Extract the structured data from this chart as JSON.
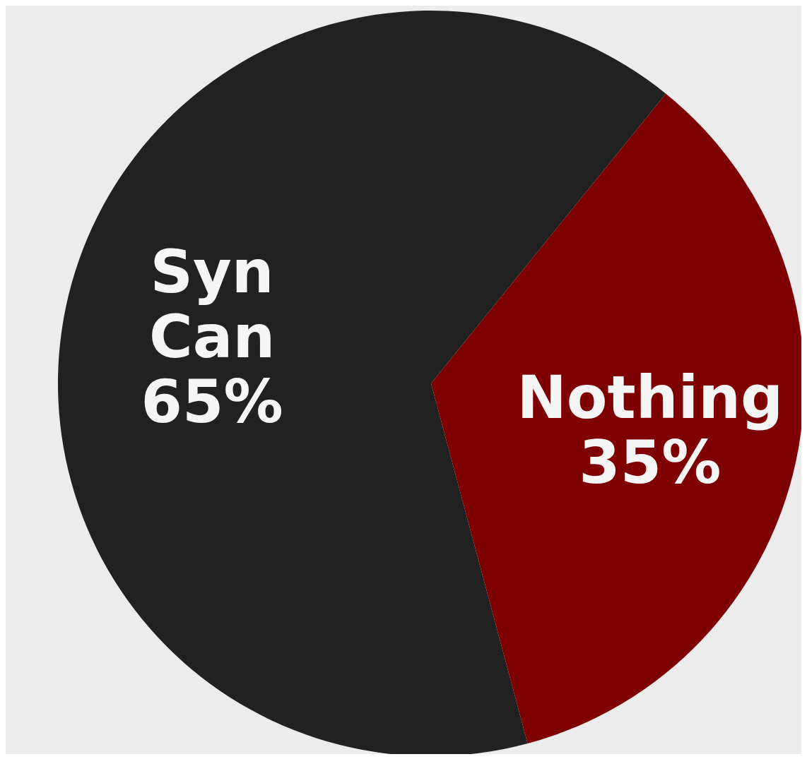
{
  "chart_data": {
    "type": "pie",
    "categories": [
      "Syn Can",
      "Nothing"
    ],
    "values": [
      65,
      35
    ],
    "colors": [
      "#212121",
      "#7f0000"
    ],
    "value_labels": [
      "65%",
      "35%"
    ],
    "legend": false
  }
}
